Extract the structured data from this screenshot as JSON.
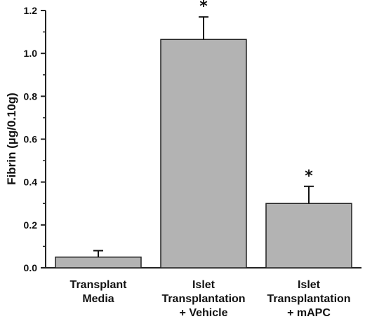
{
  "chart_data": {
    "type": "bar",
    "categories": [
      [
        "Transplant",
        "Media"
      ],
      [
        "Islet",
        "Transplantation",
        "+ Vehicle"
      ],
      [
        "Islet",
        "Transplantation",
        "+ mAPC"
      ]
    ],
    "values": [
      0.05,
      1.065,
      0.3
    ],
    "errors": [
      0.03,
      0.105,
      0.08
    ],
    "annotations": [
      "",
      "*",
      "*"
    ],
    "ylabel": "Fibrin (µg/0.10g)",
    "xlabel": "",
    "ylim": [
      0,
      1.2
    ],
    "yticks": [
      "0.0",
      "0.2",
      "0.4",
      "0.6",
      "0.8",
      "1.0",
      "1.2"
    ],
    "grid": false,
    "colors": {
      "bar_fill": "#b3b3b3",
      "bar_stroke": "#222222",
      "axis": "#222222"
    }
  }
}
